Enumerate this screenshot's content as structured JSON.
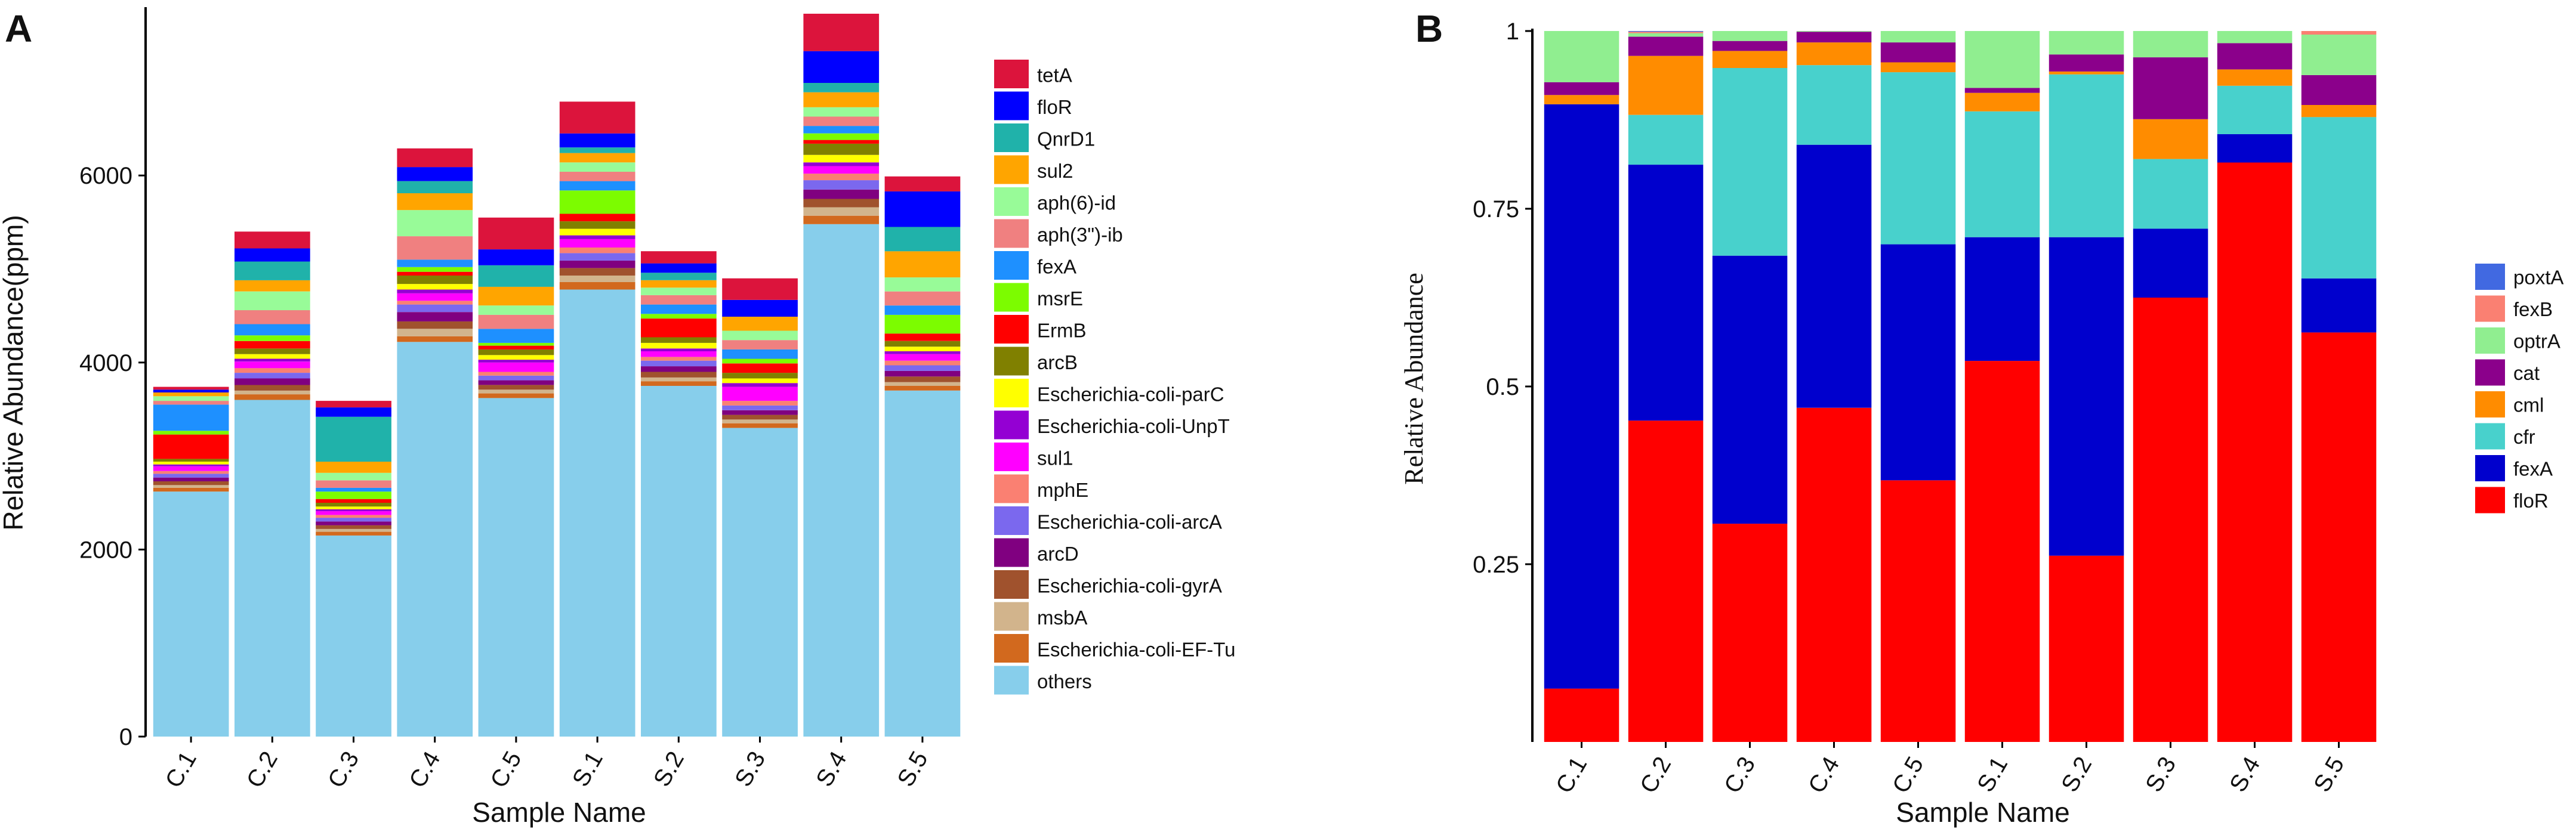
{
  "chart_data": [
    {
      "panel": "A",
      "type": "bar",
      "stacked": true,
      "xlabel": "Sample Name",
      "ylabel": "Relative Abundance(ppm)",
      "ylim": [
        0,
        7800
      ],
      "yticks": [
        0,
        2000,
        4000,
        6000
      ],
      "ytick_labels": [
        "0",
        "2000",
        "4000",
        "6000"
      ],
      "categories": [
        "C.1",
        "C.2",
        "C.3",
        "C.4",
        "C.5",
        "S.1",
        "S.2",
        "S.3",
        "S.4",
        "S.5"
      ],
      "series": [
        {
          "name": "others",
          "color": "#87CEEB",
          "values": [
            2620,
            3600,
            2150,
            4220,
            3620,
            4780,
            3750,
            3300,
            5480,
            3700
          ]
        },
        {
          "name": "Escherichia-coli-EF-Tu",
          "color": "#D2691E",
          "values": [
            40,
            60,
            40,
            60,
            50,
            80,
            50,
            50,
            90,
            50
          ]
        },
        {
          "name": "msbA",
          "color": "#D2B48C",
          "values": [
            30,
            40,
            30,
            80,
            40,
            70,
            40,
            40,
            90,
            40
          ]
        },
        {
          "name": "Escherichia-coli-gyrA",
          "color": "#A0522D",
          "values": [
            40,
            60,
            40,
            80,
            50,
            80,
            60,
            50,
            90,
            60
          ]
        },
        {
          "name": "arcD",
          "color": "#800080",
          "values": [
            40,
            70,
            40,
            100,
            50,
            80,
            60,
            50,
            100,
            60
          ]
        },
        {
          "name": "Escherichia-coli-arcA",
          "color": "#7B68EE",
          "values": [
            40,
            60,
            40,
            80,
            50,
            80,
            60,
            50,
            100,
            60
          ]
        },
        {
          "name": "mphE",
          "color": "#FA8072",
          "values": [
            30,
            50,
            30,
            40,
            40,
            60,
            40,
            50,
            70,
            50
          ]
        },
        {
          "name": "sul1",
          "color": "#FF00FF",
          "values": [
            50,
            70,
            40,
            80,
            100,
            90,
            60,
            150,
            80,
            70
          ]
        },
        {
          "name": "Escherichia-coli-UnpT",
          "color": "#9400D3",
          "values": [
            20,
            30,
            20,
            40,
            30,
            40,
            30,
            40,
            40,
            30
          ]
        },
        {
          "name": "Escherichia-coli-parC",
          "color": "#FFFF00",
          "values": [
            30,
            50,
            30,
            60,
            50,
            70,
            60,
            50,
            80,
            50
          ]
        },
        {
          "name": "arcB",
          "color": "#808000",
          "values": [
            30,
            60,
            40,
            90,
            60,
            80,
            60,
            60,
            120,
            60
          ]
        },
        {
          "name": "ErmB",
          "color": "#FF0000",
          "values": [
            260,
            80,
            40,
            40,
            40,
            80,
            200,
            100,
            40,
            80
          ]
        },
        {
          "name": "msrE",
          "color": "#7CFC00",
          "values": [
            40,
            60,
            80,
            50,
            30,
            250,
            50,
            50,
            70,
            200
          ]
        },
        {
          "name": "fexA",
          "color": "#1E90FF",
          "values": [
            280,
            120,
            40,
            80,
            150,
            100,
            100,
            100,
            80,
            100
          ]
        },
        {
          "name": "aph(3\")-ib",
          "color": "#F08080",
          "values": [
            40,
            150,
            80,
            250,
            150,
            100,
            100,
            100,
            100,
            150
          ]
        },
        {
          "name": "aph(6)-id",
          "color": "#98FB98",
          "values": [
            50,
            200,
            80,
            280,
            100,
            100,
            80,
            100,
            100,
            150
          ]
        },
        {
          "name": "sul2",
          "color": "#FFA500",
          "values": [
            40,
            120,
            120,
            180,
            200,
            100,
            80,
            150,
            160,
            280
          ]
        },
        {
          "name": "QnrD1",
          "color": "#20B2AA",
          "values": [
            0,
            200,
            480,
            130,
            230,
            60,
            80,
            0,
            100,
            260
          ]
        },
        {
          "name": "floR",
          "color": "#0000FF",
          "values": [
            30,
            140,
            100,
            150,
            170,
            150,
            100,
            180,
            340,
            380
          ]
        },
        {
          "name": "tetA",
          "color": "#DC143C",
          "values": [
            30,
            180,
            70,
            200,
            340,
            340,
            130,
            230,
            400,
            160
          ]
        }
      ],
      "legend_order": [
        "tetA",
        "floR",
        "QnrD1",
        "sul2",
        "aph(6)-id",
        "aph(3\")-ib",
        "fexA",
        "msrE",
        "ErmB",
        "arcB",
        "Escherichia-coli-parC",
        "Escherichia-coli-UnpT",
        "sul1",
        "mphE",
        "Escherichia-coli-arcA",
        "arcD",
        "Escherichia-coli-gyrA",
        "msbA",
        "Escherichia-coli-EF-Tu",
        "others"
      ],
      "legend_position": "right"
    },
    {
      "panel": "B",
      "type": "bar",
      "stacked": true,
      "xlabel": "Sample Name",
      "ylabel": "Relative Abundance",
      "ylim": [
        0,
        1
      ],
      "yticks": [
        0.25,
        0.5,
        0.75,
        1
      ],
      "ytick_labels": [
        "0.25",
        "0.5",
        "0.75",
        "1"
      ],
      "categories": [
        "C.1",
        "C.2",
        "C.3",
        "C.4",
        "C.5",
        "S.1",
        "S.2",
        "S.3",
        "S.4",
        "S.5"
      ],
      "series": [
        {
          "name": "floR",
          "color": "#FF0000",
          "values": [
            0.075,
            0.452,
            0.307,
            0.47,
            0.368,
            0.536,
            0.262,
            0.625,
            0.815,
            0.576
          ]
        },
        {
          "name": "fexA",
          "color": "#0000CD",
          "values": [
            0.822,
            0.36,
            0.377,
            0.37,
            0.332,
            0.174,
            0.448,
            0.097,
            0.04,
            0.076
          ]
        },
        {
          "name": "cfr",
          "color": "#48D1CC",
          "values": [
            0,
            0.07,
            0.264,
            0.112,
            0.242,
            0.177,
            0.229,
            0.098,
            0.068,
            0.227
          ]
        },
        {
          "name": "cml",
          "color": "#FF8C00",
          "values": [
            0.013,
            0.083,
            0.024,
            0.032,
            0.014,
            0.026,
            0.004,
            0.056,
            0.023,
            0.017
          ]
        },
        {
          "name": "cat",
          "color": "#8B008B",
          "values": [
            0.018,
            0.027,
            0.014,
            0.015,
            0.028,
            0.007,
            0.024,
            0.087,
            0.037,
            0.042
          ]
        },
        {
          "name": "optrA",
          "color": "#90EE90",
          "values": [
            0.072,
            0.005,
            0.014,
            0.001,
            0.016,
            0.08,
            0.033,
            0.037,
            0.017,
            0.057
          ]
        },
        {
          "name": "fexB",
          "color": "#FA8072",
          "values": [
            0,
            0.002,
            0,
            0,
            0,
            0,
            0,
            0,
            0,
            0.005
          ]
        },
        {
          "name": "poxtA",
          "color": "#4169E1",
          "values": [
            0,
            0.001,
            0,
            0,
            0,
            0,
            0,
            0,
            0,
            0
          ]
        }
      ],
      "legend_order": [
        "poxtA",
        "fexB",
        "optrA",
        "cat",
        "cml",
        "cfr",
        "fexA",
        "floR"
      ],
      "legend_position": "right"
    }
  ]
}
